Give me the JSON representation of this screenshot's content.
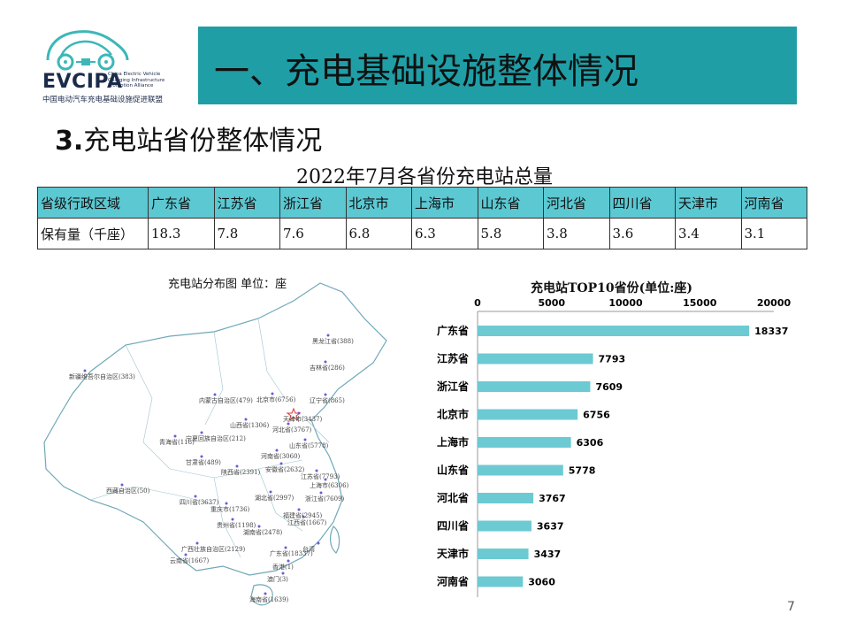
{
  "logo": {
    "name": "EVCIPA",
    "subtitle_lines": [
      "China Electric Vehicle",
      "Charging Infrastructure",
      "Promotion Alliance"
    ],
    "chinese_name": "中国电动汽车充电基础设施促进联盟"
  },
  "header": {
    "title": "一、充电基础设施整体情况"
  },
  "section": {
    "title_num": "3.",
    "title_text": "充电站省份整体情况"
  },
  "table": {
    "title": "2022年7月各省份充电站总量",
    "row_header_1": "省级行政区域",
    "row_header_2": "保有量（千座）",
    "provinces": [
      "广东省",
      "江苏省",
      "浙江省",
      "北京市",
      "上海市",
      "山东省",
      "河北省",
      "四川省",
      "天津市",
      "河南省"
    ],
    "values": [
      "18.3",
      "7.8",
      "7.6",
      "6.8",
      "6.3",
      "5.8",
      "3.8",
      "3.6",
      "3.4",
      "3.1"
    ]
  },
  "map": {
    "title": "充电站分布图   单位：座",
    "labels": [
      "黑龙江省(388)",
      "吉林省(286)",
      "辽宁省(865)",
      "内蒙古自治区(479)",
      "北京市(6756)",
      "天津市(3437)",
      "河北省(3767)",
      "山西省(1306)",
      "山东省(5778)",
      "新疆维吾尔自治区(383)",
      "宁夏回族自治区(212)",
      "青海省(118)",
      "甘肃省(489)",
      "陕西省(2391)",
      "河南省(3060)",
      "安徽省(2632)",
      "江苏省(7793)",
      "上海市(6306)",
      "浙江省(7609)",
      "湖北省(2997)",
      "西藏自治区(50)",
      "四川省(3637)",
      "重庆市(1736)",
      "湖南省(2478)",
      "江西省(1667)",
      "福建省(2945)",
      "贵州省(1198)",
      "广西壮族自治区(2129)",
      "广东省(18337)",
      "云南省(1667)",
      "台湾",
      "香港(1)",
      "澳门(3)",
      "海南省(1639)"
    ]
  },
  "chart_data": {
    "type": "bar",
    "orientation": "horizontal",
    "title": "充电站TOP10省份(单位:座)",
    "categories": [
      "广东省",
      "江苏省",
      "浙江省",
      "北京市",
      "上海市",
      "山东省",
      "河北省",
      "四川省",
      "天津市",
      "河南省"
    ],
    "values": [
      18337,
      7793,
      7609,
      6756,
      6306,
      5778,
      3767,
      3637,
      3437,
      3060
    ],
    "xlim": [
      0,
      20000
    ],
    "xticks": [
      0,
      5000,
      10000,
      15000,
      20000
    ],
    "axis_position": "top",
    "bar_color": "#6ccad3",
    "grid": false
  },
  "footer": {
    "page_number": "7"
  },
  "colors": {
    "accent": "#1f9ea6",
    "table_header": "#5bc8d2",
    "logo_teal": "#3cb7b8"
  }
}
